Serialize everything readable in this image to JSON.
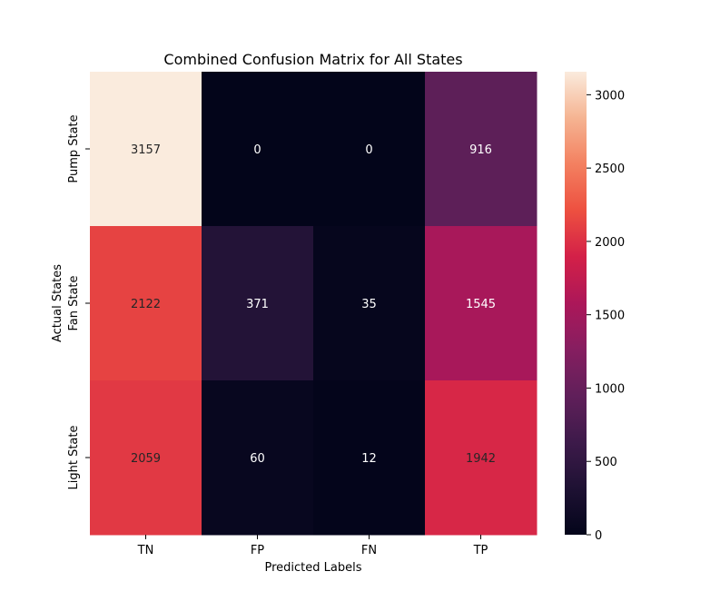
{
  "chart_data": {
    "type": "heatmap",
    "title": "Combined Confusion Matrix for All States",
    "xlabel": "Predicted Labels",
    "ylabel": "Actual States",
    "x_categories": [
      "TN",
      "FP",
      "FN",
      "TP"
    ],
    "y_categories": [
      "Pump State",
      "Fan State",
      "Light State"
    ],
    "values": [
      [
        3157,
        0,
        0,
        916
      ],
      [
        2122,
        371,
        35,
        1545
      ],
      [
        2059,
        60,
        12,
        1942
      ]
    ],
    "colorbar": {
      "min": 0,
      "max": 3157,
      "ticks": [
        0,
        500,
        1000,
        1500,
        2000,
        2500,
        3000
      ],
      "colormap": "rocket"
    },
    "grid": false
  }
}
